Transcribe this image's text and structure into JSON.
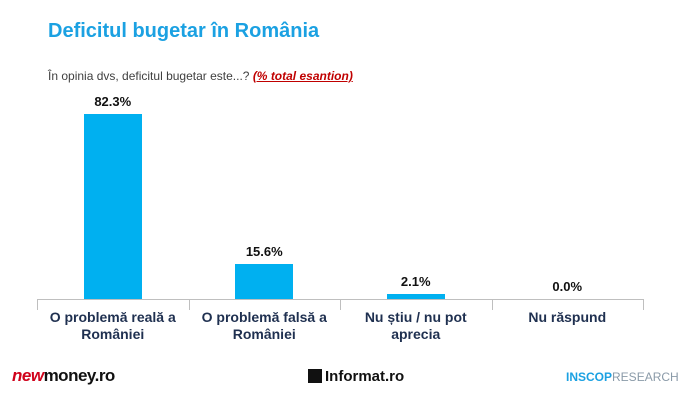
{
  "chart_data": {
    "type": "bar",
    "title": "Deficitul bugetar în România",
    "subtitle": "În opinia dvs, deficitul bugetar este...?",
    "subtitle_note": "(% total esantion)",
    "categories": [
      "O problemă reală a României",
      "O problemă falsă a României",
      "Nu știu / nu pot aprecia",
      "Nu răspund"
    ],
    "values": [
      82.3,
      15.6,
      2.1,
      0.0
    ],
    "value_labels": [
      "82.3%",
      "15.6%",
      "2.1%",
      "0.0%"
    ],
    "color": "#00b0f0"
  },
  "footer": {
    "logo_left": [
      "new",
      "money.ro"
    ],
    "logo_center": "Informat.ro",
    "logo_right": [
      "INSCOP",
      "RESEARCH"
    ]
  }
}
